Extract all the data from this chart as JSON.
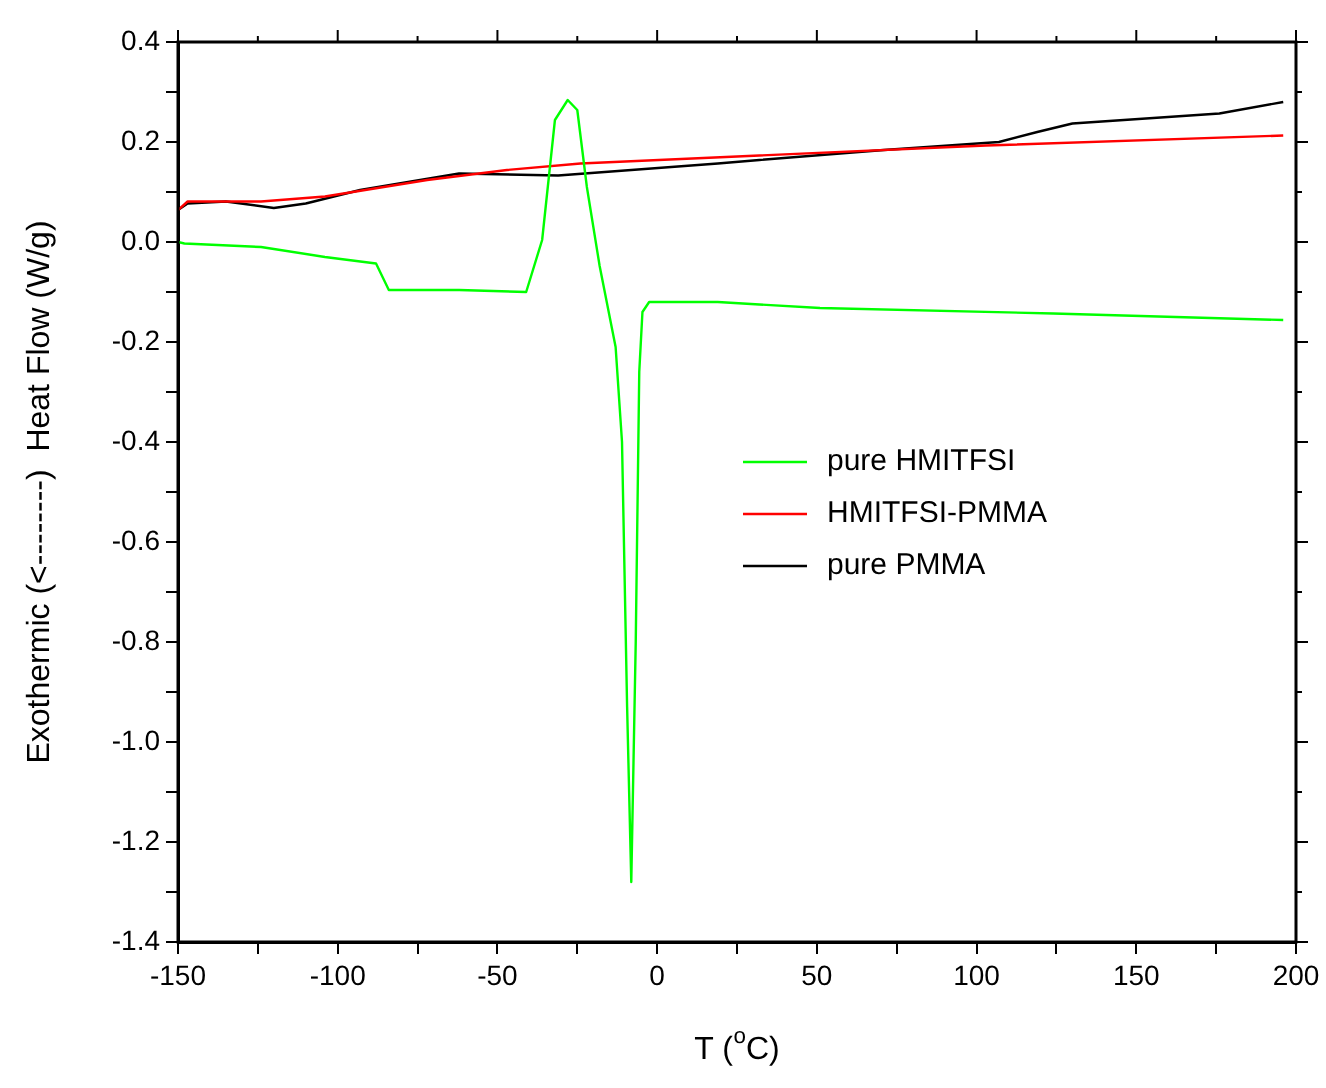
{
  "chart_data": {
    "type": "line",
    "xlabel": "T ($^{o}$C)",
    "ylabel": "Exothermic (<--------)  Heat Flow (W/g)",
    "xlim": [
      -150,
      200
    ],
    "ylim": [
      -1.4,
      0.4
    ],
    "xticks": [
      -150,
      {
        "value": -125,
        "label": null
      },
      -100,
      {
        "value": -75,
        "label": null
      },
      -50,
      {
        "value": -25,
        "label": null
      },
      0,
      {
        "value": 25,
        "label": null
      },
      50,
      {
        "value": 75,
        "label": null
      },
      100,
      {
        "value": 125,
        "label": null
      },
      150,
      {
        "value": 175,
        "label": null
      },
      200
    ],
    "yticks": [
      {
        "value": -1.4,
        "label": "-1.4"
      },
      {
        "value": -1.3,
        "label": null
      },
      {
        "value": -1.2,
        "label": "-1.2"
      },
      {
        "value": -1.1,
        "label": null
      },
      {
        "value": -1.0,
        "label": "-1.0"
      },
      {
        "value": -0.9,
        "label": null
      },
      {
        "value": -0.8,
        "label": "-0.8"
      },
      {
        "value": -0.7,
        "label": null
      },
      {
        "value": -0.6,
        "label": "-0.6"
      },
      {
        "value": -0.5,
        "label": null
      },
      {
        "value": -0.4,
        "label": "-0.4"
      },
      {
        "value": -0.3,
        "label": null
      },
      {
        "value": -0.2,
        "label": "-0.2"
      },
      {
        "value": -0.1,
        "label": null
      },
      {
        "value": 0,
        "label": "0.0"
      },
      {
        "value": 0.1,
        "label": null
      },
      {
        "value": 0.2,
        "label": "0.2"
      },
      {
        "value": 0.3,
        "label": null
      },
      {
        "value": 0.4,
        "label": "0.4"
      }
    ],
    "grid": false,
    "legend": "right",
    "marker": "none",
    "line_style": "solid",
    "series": [
      {
        "name": "pure HMITFSI",
        "color": "#00ff00",
        "x": [
          -150,
          -148,
          -124,
          -104,
          -88,
          -84,
          -62,
          -41,
          -36,
          -32,
          -28,
          -25,
          -22,
          -18,
          -13,
          -11,
          -9.4,
          -8.1,
          -6.7,
          -5.6,
          -4.6,
          -2.5,
          19,
          32,
          51,
          124,
          196
        ],
        "values": [
          0,
          -0.003,
          -0.01,
          -0.03,
          -0.043,
          -0.096,
          -0.096,
          -0.1,
          0.004,
          0.244,
          0.284,
          0.264,
          0.11,
          -0.048,
          -0.21,
          -0.4,
          -0.93,
          -1.28,
          -0.8,
          -0.26,
          -0.14,
          -0.12,
          -0.12,
          -0.125,
          -0.132,
          -0.143,
          -0.156
        ]
      },
      {
        "name": "HMITFSI-PMMA",
        "color": "#ff0000",
        "x": [
          -150,
          -147,
          -124,
          -104,
          -72,
          -47,
          -24,
          32,
          103,
          196
        ],
        "values": [
          0.064,
          0.081,
          0.081,
          0.091,
          0.124,
          0.144,
          0.157,
          0.173,
          0.193,
          0.213
        ]
      },
      {
        "name": "pure PMMA",
        "color": "#000000",
        "x": [
          -150,
          -147,
          -135,
          -120,
          -110,
          -93,
          -62,
          -31,
          19,
          32,
          71,
          107,
          119,
          130,
          176,
          196
        ],
        "values": [
          0.064,
          0.077,
          0.081,
          0.068,
          0.077,
          0.104,
          0.137,
          0.133,
          0.157,
          0.164,
          0.184,
          0.2,
          0.22,
          0.237,
          0.257,
          0.28
        ]
      }
    ]
  }
}
